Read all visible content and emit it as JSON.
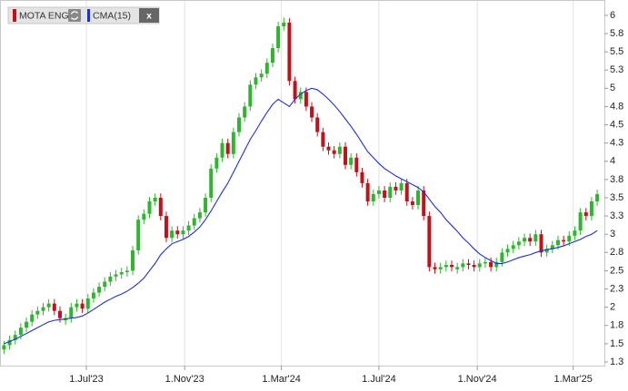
{
  "chart_data": {
    "type": "candlestick",
    "x": [
      "2023-03-20",
      "2023-03-27",
      "2023-04-03",
      "2023-04-10",
      "2023-04-17",
      "2023-04-24",
      "2023-05-01",
      "2023-05-08",
      "2023-05-15",
      "2023-05-22",
      "2023-05-29",
      "2023-06-05",
      "2023-06-12",
      "2023-06-19",
      "2023-06-26",
      "2023-07-03",
      "2023-07-10",
      "2023-07-17",
      "2023-07-24",
      "2023-07-31",
      "2023-08-07",
      "2023-08-14",
      "2023-08-21",
      "2023-08-28",
      "2023-09-04",
      "2023-09-11",
      "2023-09-18",
      "2023-09-25",
      "2023-10-02",
      "2023-10-09",
      "2023-10-16",
      "2023-10-23",
      "2023-10-30",
      "2023-11-06",
      "2023-11-13",
      "2023-11-20",
      "2023-11-27",
      "2023-12-04",
      "2023-12-11",
      "2023-12-18",
      "2023-12-25",
      "2024-01-01",
      "2024-01-08",
      "2024-01-15",
      "2024-01-22",
      "2024-01-29",
      "2024-02-05",
      "2024-02-12",
      "2024-02-19",
      "2024-02-26",
      "2024-03-04",
      "2024-03-11",
      "2024-03-18",
      "2024-03-25",
      "2024-04-01",
      "2024-04-08",
      "2024-04-15",
      "2024-04-22",
      "2024-04-29",
      "2024-05-06",
      "2024-05-13",
      "2024-05-20",
      "2024-05-27",
      "2024-06-03",
      "2024-06-10",
      "2024-06-17",
      "2024-06-24",
      "2024-07-01",
      "2024-07-08",
      "2024-07-15",
      "2024-07-22",
      "2024-07-29",
      "2024-08-05",
      "2024-08-12",
      "2024-08-19",
      "2024-08-26",
      "2024-09-02",
      "2024-09-09",
      "2024-09-16",
      "2024-09-23",
      "2024-09-30",
      "2024-10-07",
      "2024-10-14",
      "2024-10-21",
      "2024-10-28",
      "2024-11-04",
      "2024-11-11",
      "2024-11-18",
      "2024-11-25",
      "2024-12-02",
      "2024-12-09",
      "2024-12-16",
      "2024-12-23",
      "2024-12-30",
      "2025-01-06",
      "2025-01-13",
      "2025-01-20",
      "2025-01-27",
      "2025-02-03",
      "2025-02-10",
      "2025-02-17",
      "2025-02-24",
      "2025-03-03",
      "2025-03-10",
      "2025-03-17",
      "2025-03-24",
      "2025-03-31"
    ],
    "series": [
      {
        "name": "MOTA ENG",
        "up_color": "#2fb52f",
        "down_color": "#c0121b",
        "open": [
          1.42,
          1.48,
          1.55,
          1.62,
          1.72,
          1.8,
          1.9,
          1.95,
          2.0,
          2.05,
          1.95,
          1.82,
          1.85,
          2.0,
          2.05,
          1.98,
          2.12,
          2.2,
          2.28,
          2.35,
          2.42,
          2.45,
          2.48,
          2.5,
          2.78,
          3.2,
          3.28,
          3.45,
          3.5,
          3.25,
          2.95,
          3.05,
          3.0,
          3.05,
          3.12,
          3.22,
          3.3,
          3.5,
          3.9,
          4.05,
          4.25,
          4.1,
          4.4,
          4.6,
          4.75,
          5.05,
          5.15,
          5.2,
          5.35,
          5.55,
          5.85,
          5.9,
          5.1,
          4.85,
          4.95,
          4.75,
          4.6,
          4.4,
          4.2,
          4.15,
          4.1,
          4.2,
          3.95,
          4.05,
          3.85,
          3.7,
          3.45,
          3.55,
          3.6,
          3.5,
          3.65,
          3.6,
          3.7,
          3.45,
          3.4,
          3.6,
          3.25,
          2.55,
          2.52,
          2.55,
          2.58,
          2.52,
          2.55,
          2.6,
          2.58,
          2.55,
          2.6,
          2.62,
          2.55,
          2.62,
          2.75,
          2.8,
          2.85,
          2.9,
          2.95,
          2.9,
          3.0,
          2.75,
          2.8,
          2.85,
          2.92,
          2.9,
          2.98,
          3.05,
          3.3,
          3.25,
          3.45
        ],
        "high": [
          1.54,
          1.61,
          1.68,
          1.78,
          1.86,
          1.96,
          2.01,
          2.06,
          2.11,
          2.11,
          2.01,
          1.91,
          2.06,
          2.11,
          2.11,
          2.18,
          2.26,
          2.34,
          2.41,
          2.48,
          2.51,
          2.54,
          2.56,
          2.84,
          3.26,
          3.34,
          3.51,
          3.56,
          3.56,
          3.31,
          3.11,
          3.11,
          3.11,
          3.18,
          3.28,
          3.36,
          3.56,
          3.96,
          4.11,
          4.31,
          4.31,
          4.46,
          4.66,
          4.81,
          5.11,
          5.21,
          5.26,
          5.41,
          5.61,
          5.91,
          5.97,
          5.96,
          5.16,
          5.01,
          5.01,
          4.81,
          4.66,
          4.46,
          4.26,
          4.21,
          4.26,
          4.26,
          4.11,
          4.11,
          3.91,
          3.76,
          3.61,
          3.66,
          3.66,
          3.71,
          3.71,
          3.76,
          3.76,
          3.51,
          3.66,
          3.66,
          3.31,
          2.61,
          2.61,
          2.64,
          2.64,
          2.61,
          2.66,
          2.66,
          2.64,
          2.66,
          2.68,
          2.68,
          2.68,
          2.81,
          2.86,
          2.91,
          2.96,
          3.01,
          3.01,
          3.06,
          3.06,
          2.86,
          2.91,
          2.98,
          2.98,
          3.04,
          3.11,
          3.36,
          3.36,
          3.51,
          3.61
        ],
        "low": [
          1.36,
          1.42,
          1.49,
          1.56,
          1.66,
          1.74,
          1.84,
          1.89,
          1.94,
          1.89,
          1.79,
          1.76,
          1.79,
          1.94,
          1.92,
          1.92,
          2.06,
          2.14,
          2.22,
          2.29,
          2.36,
          2.39,
          2.42,
          2.44,
          2.72,
          3.14,
          3.22,
          3.39,
          3.19,
          2.89,
          2.89,
          2.94,
          2.94,
          2.99,
          3.06,
          3.16,
          3.24,
          3.44,
          3.84,
          3.99,
          4.04,
          4.04,
          4.34,
          4.54,
          4.69,
          4.99,
          5.09,
          5.14,
          5.29,
          5.49,
          5.79,
          5.04,
          4.79,
          4.79,
          4.69,
          4.54,
          4.34,
          4.14,
          4.09,
          4.04,
          4.04,
          3.89,
          3.89,
          3.79,
          3.64,
          3.39,
          3.39,
          3.49,
          3.44,
          3.44,
          3.54,
          3.54,
          3.39,
          3.34,
          3.34,
          3.19,
          2.49,
          2.46,
          2.46,
          2.49,
          2.49,
          2.46,
          2.49,
          2.52,
          2.49,
          2.49,
          2.54,
          2.49,
          2.49,
          2.56,
          2.69,
          2.74,
          2.79,
          2.84,
          2.84,
          2.84,
          2.69,
          2.69,
          2.74,
          2.79,
          2.84,
          2.84,
          2.92,
          2.99,
          3.19,
          3.19,
          3.39
        ],
        "close": [
          1.48,
          1.55,
          1.62,
          1.72,
          1.8,
          1.9,
          1.95,
          2.0,
          2.05,
          1.95,
          1.85,
          1.85,
          2.0,
          2.05,
          1.98,
          2.12,
          2.2,
          2.28,
          2.35,
          2.42,
          2.45,
          2.48,
          2.5,
          2.78,
          3.2,
          3.28,
          3.45,
          3.5,
          3.25,
          2.95,
          3.05,
          3.0,
          3.05,
          3.12,
          3.22,
          3.3,
          3.5,
          3.9,
          4.05,
          4.25,
          4.1,
          4.4,
          4.6,
          4.75,
          5.05,
          5.15,
          5.2,
          5.35,
          5.55,
          5.85,
          5.9,
          5.1,
          4.85,
          4.95,
          4.75,
          4.6,
          4.4,
          4.2,
          4.15,
          4.1,
          4.2,
          3.95,
          4.05,
          3.85,
          3.7,
          3.45,
          3.55,
          3.6,
          3.5,
          3.65,
          3.6,
          3.7,
          3.45,
          3.4,
          3.6,
          3.25,
          2.55,
          2.52,
          2.55,
          2.58,
          2.55,
          2.55,
          2.6,
          2.58,
          2.55,
          2.6,
          2.62,
          2.55,
          2.62,
          2.75,
          2.8,
          2.85,
          2.9,
          2.95,
          2.9,
          3.0,
          2.75,
          2.8,
          2.85,
          2.92,
          2.9,
          2.98,
          3.05,
          3.3,
          3.25,
          3.45,
          3.55
        ]
      },
      {
        "name": "CMA(15)",
        "type": "line",
        "color": "#1f2fd6",
        "values": [
          1.5,
          1.53,
          1.56,
          1.6,
          1.64,
          1.68,
          1.72,
          1.76,
          1.8,
          1.82,
          1.83,
          1.84,
          1.85,
          1.86,
          1.88,
          1.92,
          1.97,
          2.02,
          2.07,
          2.11,
          2.15,
          2.18,
          2.22,
          2.27,
          2.33,
          2.4,
          2.5,
          2.6,
          2.72,
          2.8,
          2.87,
          2.9,
          2.93,
          2.97,
          3.03,
          3.1,
          3.2,
          3.32,
          3.45,
          3.58,
          3.7,
          3.85,
          4.0,
          4.15,
          4.3,
          4.42,
          4.55,
          4.67,
          4.78,
          4.85,
          4.8,
          4.75,
          4.85,
          4.92,
          4.97,
          5.0,
          4.98,
          4.92,
          4.85,
          4.77,
          4.68,
          4.58,
          4.48,
          4.37,
          4.25,
          4.13,
          4.05,
          3.97,
          3.9,
          3.85,
          3.8,
          3.76,
          3.72,
          3.68,
          3.64,
          3.58,
          3.48,
          3.38,
          3.3,
          3.2,
          3.12,
          3.04,
          2.95,
          2.88,
          2.8,
          2.73,
          2.68,
          2.64,
          2.6,
          2.6,
          2.62,
          2.65,
          2.68,
          2.7,
          2.72,
          2.75,
          2.77,
          2.79,
          2.8,
          2.82,
          2.84,
          2.87,
          2.9,
          2.93,
          2.97,
          3.0,
          3.05
        ]
      }
    ],
    "close_button": "x",
    "xlim": [
      "2023-03-15",
      "2025-04-09"
    ],
    "xticks": [
      {
        "value": "2023-07-01",
        "label": "1.Jul'23"
      },
      {
        "value": "2023-11-01",
        "label": "1.Nov'23"
      },
      {
        "value": "2024-03-01",
        "label": "1.Mar'24"
      },
      {
        "value": "2024-07-01",
        "label": "1.Jul'24"
      },
      {
        "value": "2024-11-01",
        "label": "1.Nov'24"
      },
      {
        "value": "2025-03-01",
        "label": "1.Mar'25"
      }
    ],
    "ylim": [
      1.2,
      6.21
    ],
    "yticks": [
      {
        "value": 1.25,
        "label": "1.3"
      },
      1.5,
      {
        "value": 1.75,
        "label": "1.8"
      },
      2.0,
      {
        "value": 2.25,
        "label": "2.3"
      },
      2.5,
      {
        "value": 2.75,
        "label": "2.8"
      },
      3.0,
      {
        "value": 3.25,
        "label": "3.3"
      },
      3.5,
      {
        "value": 3.75,
        "label": "3.8"
      },
      4.0,
      {
        "value": 4.25,
        "label": "4.3"
      },
      4.5,
      {
        "value": 4.75,
        "label": "4.8"
      },
      5.0,
      {
        "value": 5.25,
        "label": "5.3"
      },
      5.5,
      {
        "value": 5.75,
        "label": "5.8"
      },
      6.0
    ],
    "grid": "x"
  }
}
